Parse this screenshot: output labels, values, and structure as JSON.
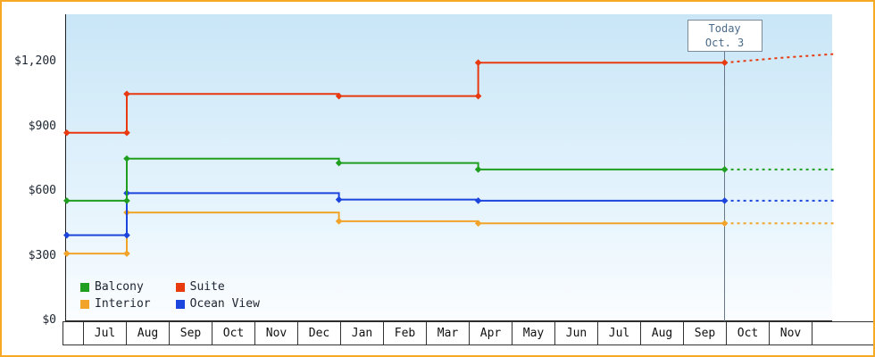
{
  "frame": {
    "border_color": "#f9a825"
  },
  "axes": {
    "y_ticks": [
      {
        "label": "$0",
        "value": 0
      },
      {
        "label": "$300",
        "value": 300
      },
      {
        "label": "$600",
        "value": 600
      },
      {
        "label": "$900",
        "value": 900
      },
      {
        "label": "$1,200",
        "value": 1200
      }
    ],
    "months": [
      "Jul",
      "Aug",
      "Sep",
      "Oct",
      "Nov",
      "Dec",
      "Jan",
      "Feb",
      "Mar",
      "Apr",
      "May",
      "Jun",
      "Jul",
      "Aug",
      "Sep",
      "Oct",
      "Nov"
    ]
  },
  "today_marker": {
    "title": "Today",
    "date": "Oct. 3",
    "month_position": 14.95,
    "line_color": "#66788a"
  },
  "legend": {
    "items": [
      {
        "label": "Balcony",
        "color": "#1f9e1f"
      },
      {
        "label": "Suite",
        "color": "#e8390f"
      },
      {
        "label": "Interior",
        "color": "#f2a32a"
      },
      {
        "label": "Ocean View",
        "color": "#1b45dd"
      }
    ]
  },
  "chart_data": {
    "type": "line",
    "step": true,
    "unit": "USD",
    "title": "",
    "ylim": [
      0,
      1200
    ],
    "y_ticks": [
      "$0",
      "$300",
      "$600",
      "$900",
      "$1,200"
    ],
    "x_months": [
      "Jul",
      "Aug",
      "Sep",
      "Oct",
      "Nov",
      "Dec",
      "Jan",
      "Feb",
      "Mar",
      "Apr",
      "May",
      "Jun",
      "Jul",
      "Aug",
      "Sep",
      "Oct",
      "Nov"
    ],
    "today": {
      "label": "Today",
      "date": "Oct. 3",
      "month_position": 14.95
    },
    "series": [
      {
        "name": "Balcony",
        "color": "#1f9e1f",
        "points": [
          [
            -0.4,
            555
          ],
          [
            1,
            555
          ],
          [
            1,
            750
          ],
          [
            5.95,
            730
          ],
          [
            9.2,
            700
          ],
          [
            14.95,
            700
          ]
        ],
        "forecast": [
          [
            14.95,
            700
          ],
          [
            17.5,
            700
          ]
        ]
      },
      {
        "name": "Suite",
        "color": "#e8390f",
        "points": [
          [
            -0.4,
            870
          ],
          [
            1,
            870
          ],
          [
            1,
            1050
          ],
          [
            5.95,
            1040
          ],
          [
            9.2,
            1040
          ],
          [
            9.2,
            1195
          ],
          [
            14.95,
            1195
          ]
        ],
        "forecast": [
          [
            14.95,
            1195
          ],
          [
            16.3,
            1218
          ],
          [
            17.5,
            1235
          ]
        ]
      },
      {
        "name": "Interior",
        "color": "#f2a32a",
        "points": [
          [
            -0.4,
            310
          ],
          [
            1,
            310
          ],
          [
            1,
            500
          ],
          [
            5.95,
            460
          ],
          [
            9.2,
            450
          ],
          [
            14.95,
            450
          ]
        ],
        "forecast": [
          [
            14.95,
            450
          ],
          [
            17.5,
            450
          ]
        ]
      },
      {
        "name": "Ocean View",
        "color": "#1b45dd",
        "points": [
          [
            -0.4,
            395
          ],
          [
            1,
            395
          ],
          [
            1,
            590
          ],
          [
            5.95,
            560
          ],
          [
            9.2,
            555
          ],
          [
            14.95,
            555
          ]
        ],
        "forecast": [
          [
            14.95,
            555
          ],
          [
            17.5,
            555
          ]
        ]
      }
    ]
  }
}
